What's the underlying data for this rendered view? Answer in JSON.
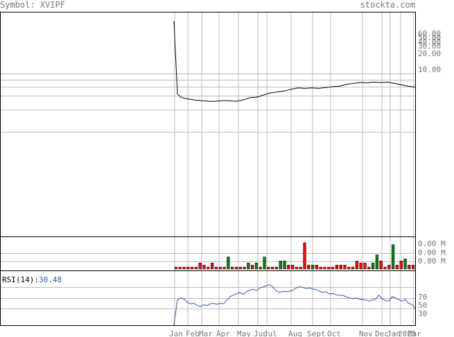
{
  "header": {
    "symbol_label": "Symbol: XVIPF",
    "site": "stockta.com"
  },
  "colors": {
    "grid": "#bbbbbb",
    "frame": "#000000",
    "price_line": "#000000",
    "up_volume": "#1a7a1a",
    "down_volume": "#dd1111",
    "rsi_line": "#3355aa",
    "label_text": "#777777",
    "rsi_value_text": "#3355aa"
  },
  "chart_data": [
    {
      "type": "line",
      "name": "price",
      "scale": "log",
      "y_ticks": [
        "60.00",
        "50.00",
        "40.00",
        "30.00",
        "20.00",
        "10.00"
      ],
      "y_tick_values": [
        60,
        50,
        40,
        30,
        20,
        10
      ],
      "months": [
        "Jan",
        "Feb",
        "Mar",
        "Apr",
        "May",
        "Jun",
        "Jul",
        "Aug",
        "Sept",
        "Oct",
        "Nov",
        "Dec",
        "Jan",
        "2025",
        "Mar"
      ],
      "x": [
        0,
        0.3,
        1,
        2,
        3,
        4,
        5,
        6,
        8,
        10,
        12,
        14,
        16,
        18,
        20,
        22,
        24,
        26,
        28,
        30,
        32,
        34,
        36,
        38,
        40,
        42,
        44,
        46,
        48,
        50,
        52,
        54,
        56,
        58,
        60,
        62,
        63,
        64,
        65,
        66,
        67,
        68,
        69,
        70
      ],
      "values": [
        300,
        150,
        32,
        29,
        28,
        27.5,
        27,
        26.5,
        26,
        25.5,
        25.5,
        26,
        26,
        25.5,
        26.5,
        28.5,
        29,
        31,
        33,
        34,
        35,
        37,
        38.5,
        38,
        38.5,
        38,
        39,
        40,
        40.5,
        43,
        44,
        45.5,
        45,
        46,
        45.5,
        46,
        45,
        44,
        43.5,
        42.5,
        41.5,
        40.5,
        40,
        39.5
      ]
    },
    {
      "type": "bar",
      "name": "volume",
      "y_ticks": [
        "0.00 M",
        "0.00 M",
        "0.00 M"
      ],
      "values": [
        1,
        1,
        1,
        1,
        1,
        1,
        3,
        2,
        1,
        3,
        1,
        1,
        1,
        6,
        1,
        1,
        1,
        1,
        3,
        2,
        3,
        1,
        6,
        1,
        1,
        1,
        4,
        4,
        2,
        2,
        1,
        1,
        13,
        2,
        2,
        2,
        1,
        1,
        1,
        1,
        2,
        2,
        2,
        1,
        1,
        4,
        3,
        3,
        1,
        3,
        7,
        4,
        1,
        2,
        12,
        2,
        4,
        5,
        2,
        2
      ],
      "up": [
        false,
        false,
        false,
        false,
        false,
        false,
        false,
        false,
        false,
        false,
        false,
        false,
        false,
        true,
        false,
        false,
        false,
        false,
        true,
        false,
        true,
        false,
        true,
        false,
        false,
        false,
        true,
        true,
        false,
        false,
        false,
        false,
        false,
        false,
        true,
        false,
        false,
        false,
        false,
        false,
        false,
        false,
        false,
        false,
        false,
        false,
        false,
        false,
        false,
        true,
        true,
        false,
        false,
        false,
        true,
        false,
        false,
        true,
        false,
        false
      ]
    },
    {
      "type": "line",
      "name": "rsi",
      "label": "RSI(14):",
      "value": "30.48",
      "ylim": [
        0,
        100
      ],
      "y_ticks": [
        "70",
        "50",
        "30"
      ],
      "y_tick_values": [
        70,
        50,
        30
      ],
      "values": [
        0,
        45,
        50,
        48,
        42,
        39,
        40,
        36,
        34,
        37,
        36,
        39,
        40,
        38,
        40,
        39,
        46,
        52,
        55,
        58,
        60,
        56,
        62,
        64,
        66,
        63,
        68,
        70,
        72,
        74,
        70,
        62,
        60,
        62,
        61,
        62,
        64,
        68,
        70,
        69,
        67,
        68,
        66,
        65,
        62,
        60,
        61,
        57,
        58,
        56,
        54,
        55,
        52,
        50,
        48,
        50,
        48,
        47,
        46,
        44,
        46,
        47,
        55,
        48,
        45,
        44,
        52,
        50,
        47,
        44,
        47,
        40,
        38,
        30.48
      ]
    }
  ]
}
